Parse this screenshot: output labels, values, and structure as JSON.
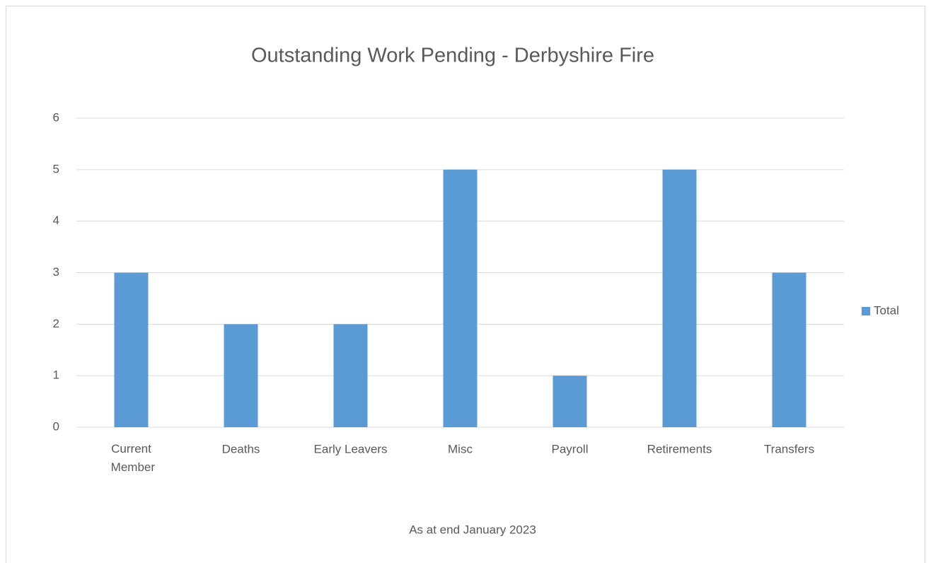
{
  "chart_data": {
    "type": "bar",
    "title": "Outstanding Work Pending -  Derbyshire Fire",
    "subtitle": "As at end January 2023",
    "categories": [
      "Current Member",
      "Deaths",
      "Early Leavers",
      "Misc",
      "Payroll",
      "Retirements",
      "Transfers"
    ],
    "series": [
      {
        "name": "Total",
        "color": "#5b9bd5",
        "values": [
          3,
          2,
          2,
          5,
          1,
          5,
          3
        ]
      }
    ],
    "ylim": [
      0,
      6
    ],
    "yticks": [
      0,
      1,
      2,
      3,
      4,
      5,
      6
    ],
    "grid": true,
    "legend": "right"
  }
}
